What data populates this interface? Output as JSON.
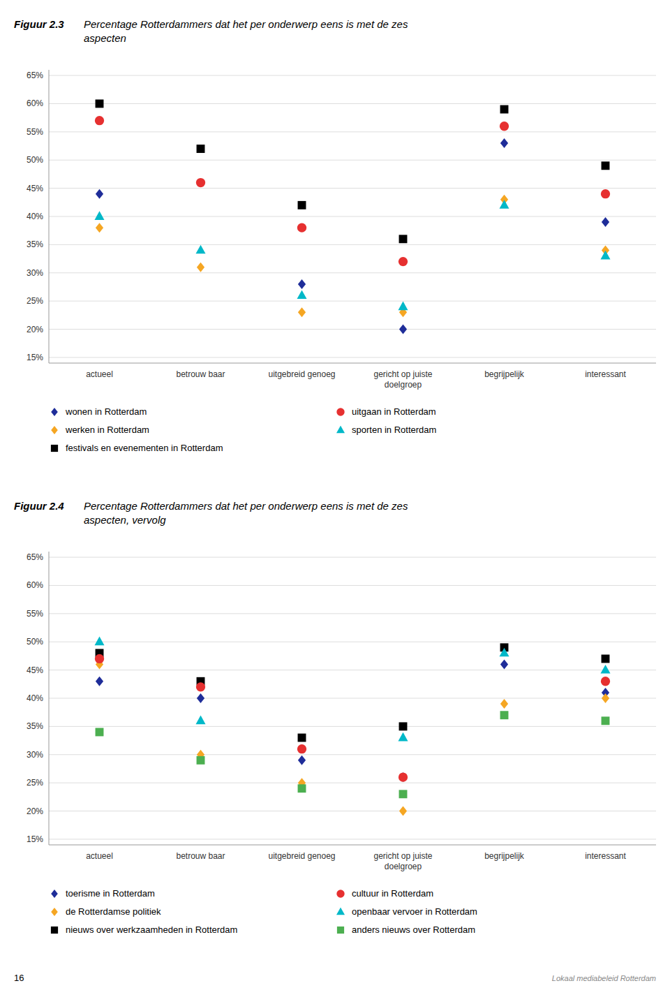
{
  "chart_data": [
    {
      "type": "scatter",
      "title": "Figuur 2.3",
      "subtitle": "Percentage Rotterdammers dat het per onderwerp eens is met de zes\naspecten",
      "categories": [
        "actueel",
        "betrouw baar",
        "uitgebreid genoeg",
        "gericht op juiste\ndoelgroep",
        "begrijpelijk",
        "interessant"
      ],
      "series": [
        {
          "name": "wonen in Rotterdam",
          "color": "#1f2d99",
          "marker": "diamond",
          "values": [
            44,
            null,
            28,
            20,
            53,
            39
          ]
        },
        {
          "name": "werken in Rotterdam",
          "color": "#f5a623",
          "marker": "diamond",
          "values": [
            38,
            31,
            23,
            23,
            43,
            34
          ]
        },
        {
          "name": "festivals en evenementen in Rotterdam",
          "color": "#000000",
          "marker": "square",
          "values": [
            60,
            52,
            42,
            36,
            59,
            49
          ]
        },
        {
          "name": "uitgaan in Rotterdam",
          "color": "#e63030",
          "marker": "circle",
          "values": [
            57,
            46,
            38,
            32,
            56,
            44
          ]
        },
        {
          "name": "sporten in Rotterdam",
          "color": "#00b8c8",
          "marker": "triangle",
          "values": [
            40,
            34,
            26,
            24,
            42,
            33
          ]
        }
      ],
      "ylim": [
        14,
        66
      ],
      "yticks": [
        {
          "value": 15,
          "label": "15%"
        },
        {
          "value": 20,
          "label": "20%"
        },
        {
          "value": 25,
          "label": "25%"
        },
        {
          "value": 30,
          "label": "30%"
        },
        {
          "value": 35,
          "label": "35%"
        },
        {
          "value": 40,
          "label": "40%"
        },
        {
          "value": 45,
          "label": "45%"
        },
        {
          "value": 50,
          "label": "50%"
        },
        {
          "value": 55,
          "label": "55%"
        },
        {
          "value": 60,
          "label": "60%"
        },
        {
          "value": 65,
          "label": "65%"
        }
      ],
      "grid": true,
      "legend": "bottom"
    },
    {
      "type": "scatter",
      "title": "Figuur 2.4",
      "subtitle": "Percentage Rotterdammers dat het per onderwerp eens is met de zes\naspecten, vervolg",
      "categories": [
        "actueel",
        "betrouw baar",
        "uitgebreid genoeg",
        "gericht op juiste\ndoelgroep",
        "begrijpelijk",
        "interessant"
      ],
      "series": [
        {
          "name": "toerisme in Rotterdam",
          "color": "#1f2d99",
          "marker": "diamond",
          "values": [
            43,
            40,
            29,
            26,
            46,
            41
          ]
        },
        {
          "name": "de Rotterdamse politiek",
          "color": "#f5a623",
          "marker": "diamond",
          "values": [
            46,
            30,
            25,
            20,
            39,
            40
          ]
        },
        {
          "name": "nieuws over werkzaamheden in Rotterdam",
          "color": "#000000",
          "marker": "square",
          "values": [
            48,
            43,
            33,
            35,
            49,
            47
          ]
        },
        {
          "name": "cultuur in Rotterdam",
          "color": "#e63030",
          "marker": "circle",
          "values": [
            47,
            42,
            31,
            26,
            null,
            43
          ]
        },
        {
          "name": "openbaar vervoer in Rotterdam",
          "color": "#00b8c8",
          "marker": "triangle",
          "values": [
            50,
            36,
            null,
            33,
            48,
            45
          ]
        },
        {
          "name": "anders nieuws over Rotterdam",
          "color": "#4caf50",
          "marker": "square",
          "values": [
            34,
            29,
            24,
            23,
            37,
            36
          ]
        }
      ],
      "ylim": [
        14,
        66
      ],
      "yticks": [
        {
          "value": 15,
          "label": "15%"
        },
        {
          "value": 20,
          "label": "20%"
        },
        {
          "value": 25,
          "label": "25%"
        },
        {
          "value": 30,
          "label": "30%"
        },
        {
          "value": 35,
          "label": "35%"
        },
        {
          "value": 40,
          "label": "40%"
        },
        {
          "value": 45,
          "label": "45%"
        },
        {
          "value": 50,
          "label": "50%"
        },
        {
          "value": 55,
          "label": "55%"
        },
        {
          "value": 60,
          "label": "60%"
        },
        {
          "value": 65,
          "label": "65%"
        }
      ],
      "grid": true,
      "legend": "bottom"
    }
  ],
  "annotations": [
    "16",
    "Lokaal mediabeleid Rotterdam"
  ]
}
